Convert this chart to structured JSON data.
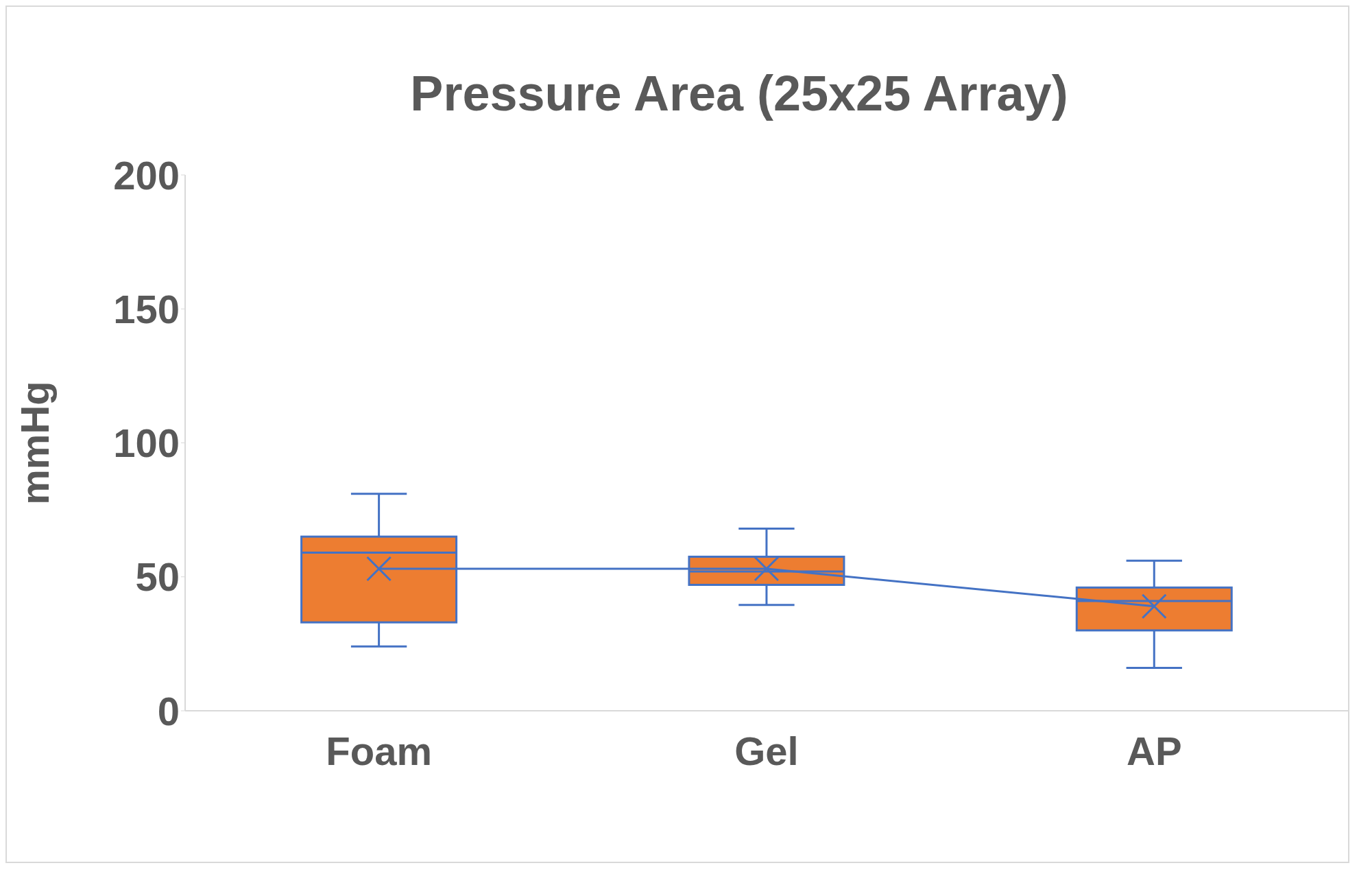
{
  "chart_data": {
    "type": "box",
    "title": "Pressure Area (25x25 Array)",
    "ylabel": "mmHg",
    "categories": [
      "Foam",
      "Gel",
      "AP"
    ],
    "ylim": [
      0,
      200
    ],
    "yticks": [
      0,
      50,
      100,
      150,
      200
    ],
    "grid": false,
    "legend": false,
    "series": [
      {
        "color": "#ed7d31",
        "boxes": [
          {
            "low": 24,
            "q1": 33,
            "median": 59,
            "q3": 65,
            "high": 81,
            "mean": 53
          },
          {
            "low": 39.5,
            "q1": 47,
            "median": 52,
            "q3": 57.5,
            "high": 68,
            "mean": 53
          },
          {
            "low": 16,
            "q1": 30,
            "median": 41,
            "q3": 46,
            "high": 56,
            "mean": 39
          }
        ]
      },
      {
        "type": "line",
        "color": "#4472c4",
        "marker": "none",
        "values": [
          53,
          53,
          39
        ]
      }
    ]
  }
}
